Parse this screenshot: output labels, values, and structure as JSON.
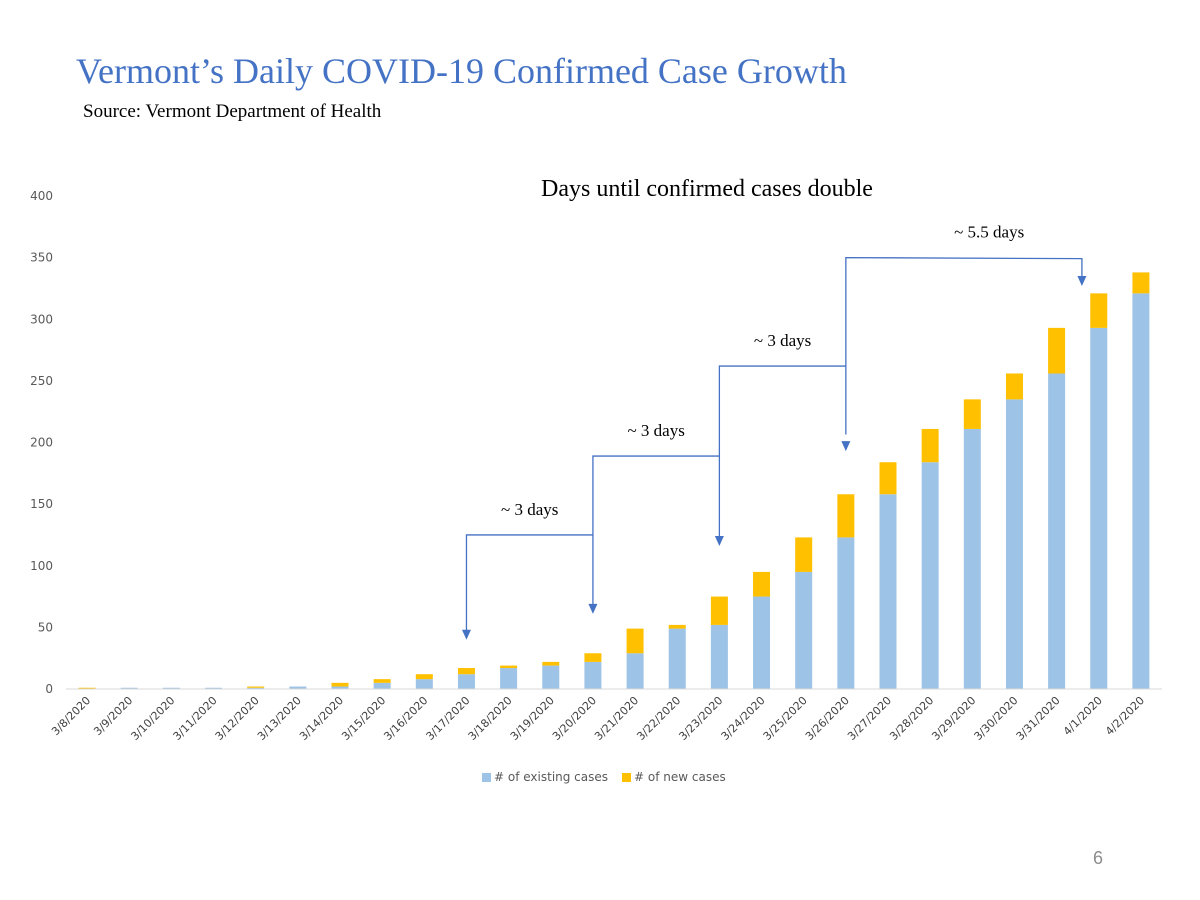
{
  "slide": {
    "title": "Vermont’s Daily COVID-19 Confirmed Case Growth",
    "source": "Source: Vermont Department of Health",
    "page_number": "6"
  },
  "colors": {
    "title": "#4472C4",
    "existing": "#9DC3E6",
    "new": "#FFC000",
    "arrow": "#4472C4",
    "axis_text": "#595959",
    "axis_line": "#D9D9D9"
  },
  "chart_data": {
    "type": "bar",
    "stacked": true,
    "title": "Days until confirmed cases double",
    "xlabel": "",
    "ylabel": "",
    "ylim": [
      0,
      400
    ],
    "yticks": [
      0,
      50,
      100,
      150,
      200,
      250,
      300,
      350,
      400
    ],
    "grid": false,
    "legend_position": "bottom",
    "categories": [
      "3/8/2020",
      "3/9/2020",
      "3/10/2020",
      "3/11/2020",
      "3/12/2020",
      "3/13/2020",
      "3/14/2020",
      "3/15/2020",
      "3/16/2020",
      "3/17/2020",
      "3/18/2020",
      "3/19/2020",
      "3/20/2020",
      "3/21/2020",
      "3/22/2020",
      "3/23/2020",
      "3/24/2020",
      "3/25/2020",
      "3/26/2020",
      "3/27/2020",
      "3/28/2020",
      "3/29/2020",
      "3/30/2020",
      "3/31/2020",
      "4/1/2020",
      "4/2/2020"
    ],
    "series": [
      {
        "name": "# of existing cases",
        "color": "#9DC3E6",
        "values": [
          0,
          1,
          1,
          1,
          1,
          2,
          2,
          5,
          8,
          12,
          17,
          19,
          22,
          29,
          49,
          52,
          75,
          95,
          123,
          158,
          184,
          211,
          235,
          256,
          293,
          321
        ]
      },
      {
        "name": "# of new cases",
        "color": "#FFC000",
        "values": [
          1,
          0,
          0,
          0,
          1,
          0,
          3,
          3,
          4,
          5,
          2,
          3,
          7,
          20,
          3,
          23,
          20,
          28,
          35,
          26,
          27,
          24,
          21,
          37,
          28,
          17
        ]
      }
    ],
    "annotations": [
      {
        "label": "~ 3 days",
        "from_index": 12,
        "to_index": 9,
        "from_value": 125,
        "to_value": 40,
        "label_x_index": 10.5
      },
      {
        "label": "~ 3 days",
        "from_index": 15,
        "to_index": 12,
        "from_value": 189,
        "to_value": 61,
        "label_x_index": 13.5
      },
      {
        "label": "~ 3 days",
        "from_index": 18,
        "to_index": 15,
        "from_value": 262,
        "to_value": 116,
        "label_x_index": 16.5
      },
      {
        "label": "~ 5.5 days",
        "from_index": 18,
        "to_index": 23.6,
        "from_value": 350,
        "to_value": 327,
        "label_x_index": 21.4
      }
    ]
  }
}
